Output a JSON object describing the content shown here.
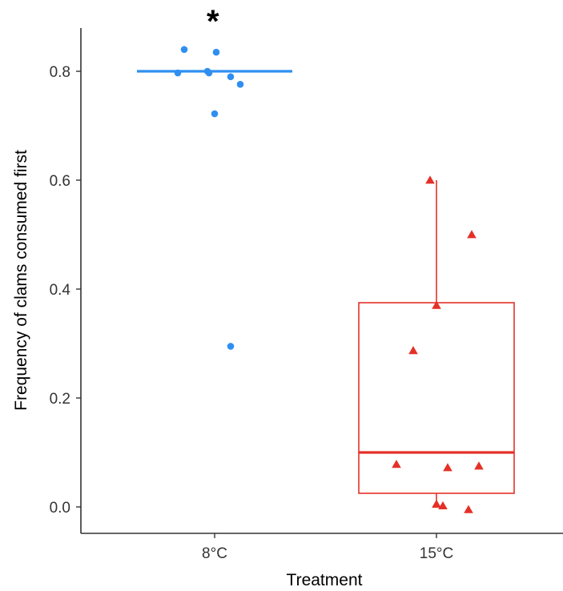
{
  "chart_data": {
    "type": "box",
    "title": "",
    "xlabel": "Treatment",
    "ylabel": "Frequency of clams consumed first",
    "categories": [
      "8°C",
      "15°C"
    ],
    "ylim": [
      -0.05,
      0.88
    ],
    "yticks": [
      0.0,
      0.2,
      0.4,
      0.6,
      0.8
    ],
    "ytick_labels": [
      "0.0",
      "0.2",
      "0.4",
      "0.6",
      "0.8"
    ],
    "grid": false,
    "legend": "none",
    "annotations": [
      {
        "category": "8°C",
        "text": "*"
      }
    ],
    "series": [
      {
        "category": "8°C",
        "color": "#2f8ff0",
        "marker": "circle",
        "box": {
          "q1": 0.8,
          "median": 0.8,
          "q3": 0.8,
          "whisker_low": 0.8,
          "whisker_high": 0.8
        },
        "points": [
          0.84,
          0.835,
          0.797,
          0.797,
          0.8,
          0.79,
          0.776,
          0.722,
          0.295
        ]
      },
      {
        "category": "15°C",
        "color": "#e53027",
        "marker": "triangle",
        "box": {
          "q1": 0.025,
          "median": 0.1,
          "q3": 0.375,
          "whisker_low": 0.0,
          "whisker_high": 0.6
        },
        "points": [
          0.6,
          0.5,
          0.37,
          0.287,
          0.078,
          0.072,
          0.075,
          0.005,
          0.002,
          -0.005
        ]
      }
    ]
  }
}
